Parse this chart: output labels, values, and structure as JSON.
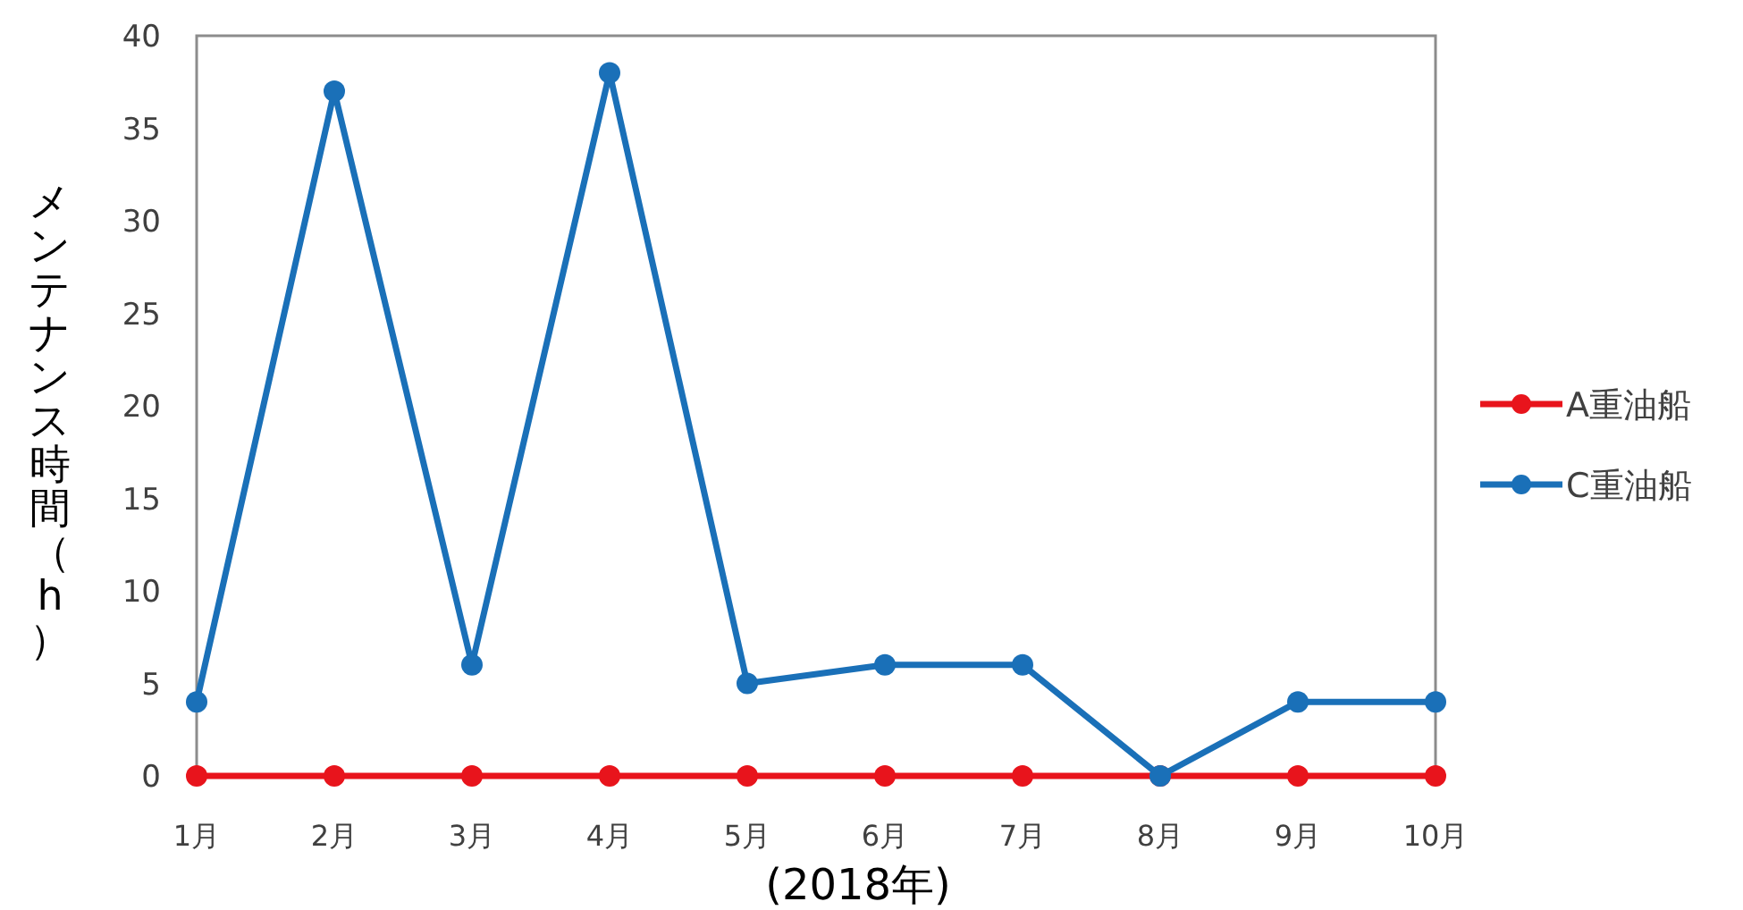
{
  "chart_data": {
    "type": "line",
    "xlabel": "(2018年)",
    "ylabel": "メンテナンス時間（h）",
    "categories": [
      "1月",
      "2月",
      "3月",
      "4月",
      "5月",
      "6月",
      "7月",
      "8月",
      "9月",
      "10月"
    ],
    "series": [
      {
        "name": "A重油船",
        "color": "#e8141c",
        "values": [
          0,
          0,
          0,
          0,
          0,
          0,
          0,
          0,
          0,
          0
        ]
      },
      {
        "name": "C重油船",
        "color": "#1a70b8",
        "values": [
          4,
          37,
          6,
          38,
          5,
          6,
          6,
          0,
          4,
          4
        ]
      }
    ],
    "ylim": [
      0,
      40
    ],
    "yticks": [
      0,
      5,
      10,
      15,
      20,
      25,
      30,
      35,
      40
    ],
    "marker": "circle",
    "legend": "right",
    "grid": false
  }
}
